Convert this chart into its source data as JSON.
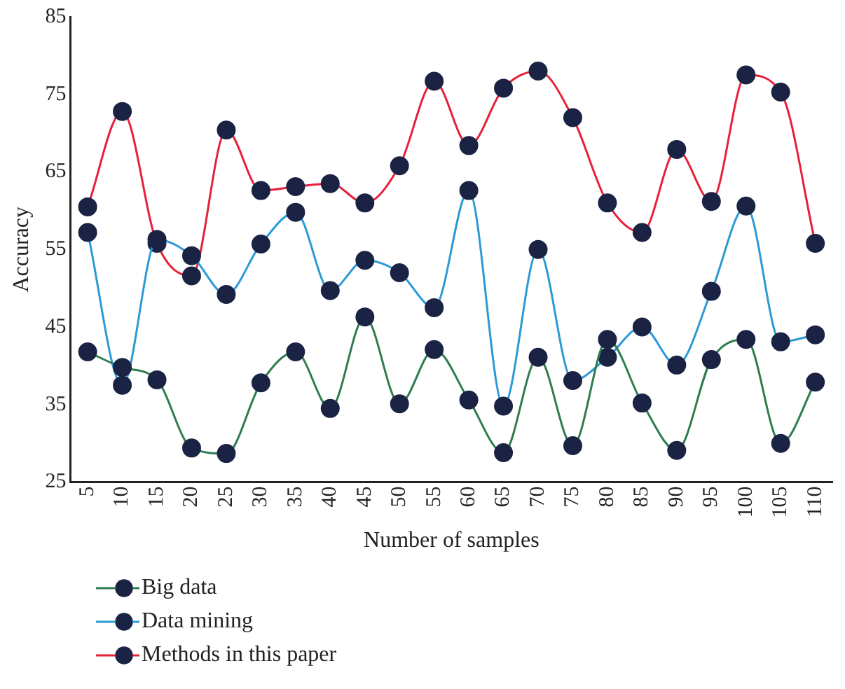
{
  "chart_data": {
    "type": "line",
    "xlabel": "Number of samples",
    "ylabel": "Accuracy",
    "categories": [
      "5",
      "10",
      "15",
      "20",
      "25",
      "30",
      "35",
      "40",
      "45",
      "50",
      "55",
      "60",
      "65",
      "70",
      "75",
      "80",
      "85",
      "90",
      "95",
      "100",
      "105",
      "110"
    ],
    "series": [
      {
        "name": "Big data",
        "color": "#2e7d4f",
        "values": [
          41.8,
          39.8,
          38.2,
          29.4,
          28.7,
          37.8,
          41.8,
          34.5,
          46.3,
          35.1,
          42.1,
          35.6,
          28.8,
          41.1,
          29.7,
          43.4,
          35.2,
          29.1,
          40.8,
          43.4,
          30,
          37.9
        ]
      },
      {
        "name": "Data mining",
        "color": "#2b9ad6",
        "values": [
          57.2,
          37.5,
          56.3,
          54.2,
          49.2,
          55.7,
          59.8,
          49.7,
          53.6,
          52,
          47.5,
          62.6,
          34.8,
          55,
          38.1,
          41.1,
          45,
          40.1,
          49.6,
          60.6,
          43.1,
          44
        ]
      },
      {
        "name": "Methods in this paper",
        "color": "#e8203a",
        "values": [
          60.5,
          72.8,
          55.8,
          51.6,
          70.4,
          62.6,
          63.1,
          63.5,
          61,
          65.8,
          76.7,
          68.4,
          75.8,
          78,
          72,
          61,
          57.2,
          67.9,
          61.2,
          77.5,
          75.3,
          55.8
        ]
      }
    ],
    "ylim": [
      25,
      85
    ],
    "yticks": [
      25,
      35,
      45,
      55,
      65,
      75,
      85
    ],
    "grid": false,
    "legend": "bottom left",
    "marker": "circle",
    "line_style": "solid"
  }
}
